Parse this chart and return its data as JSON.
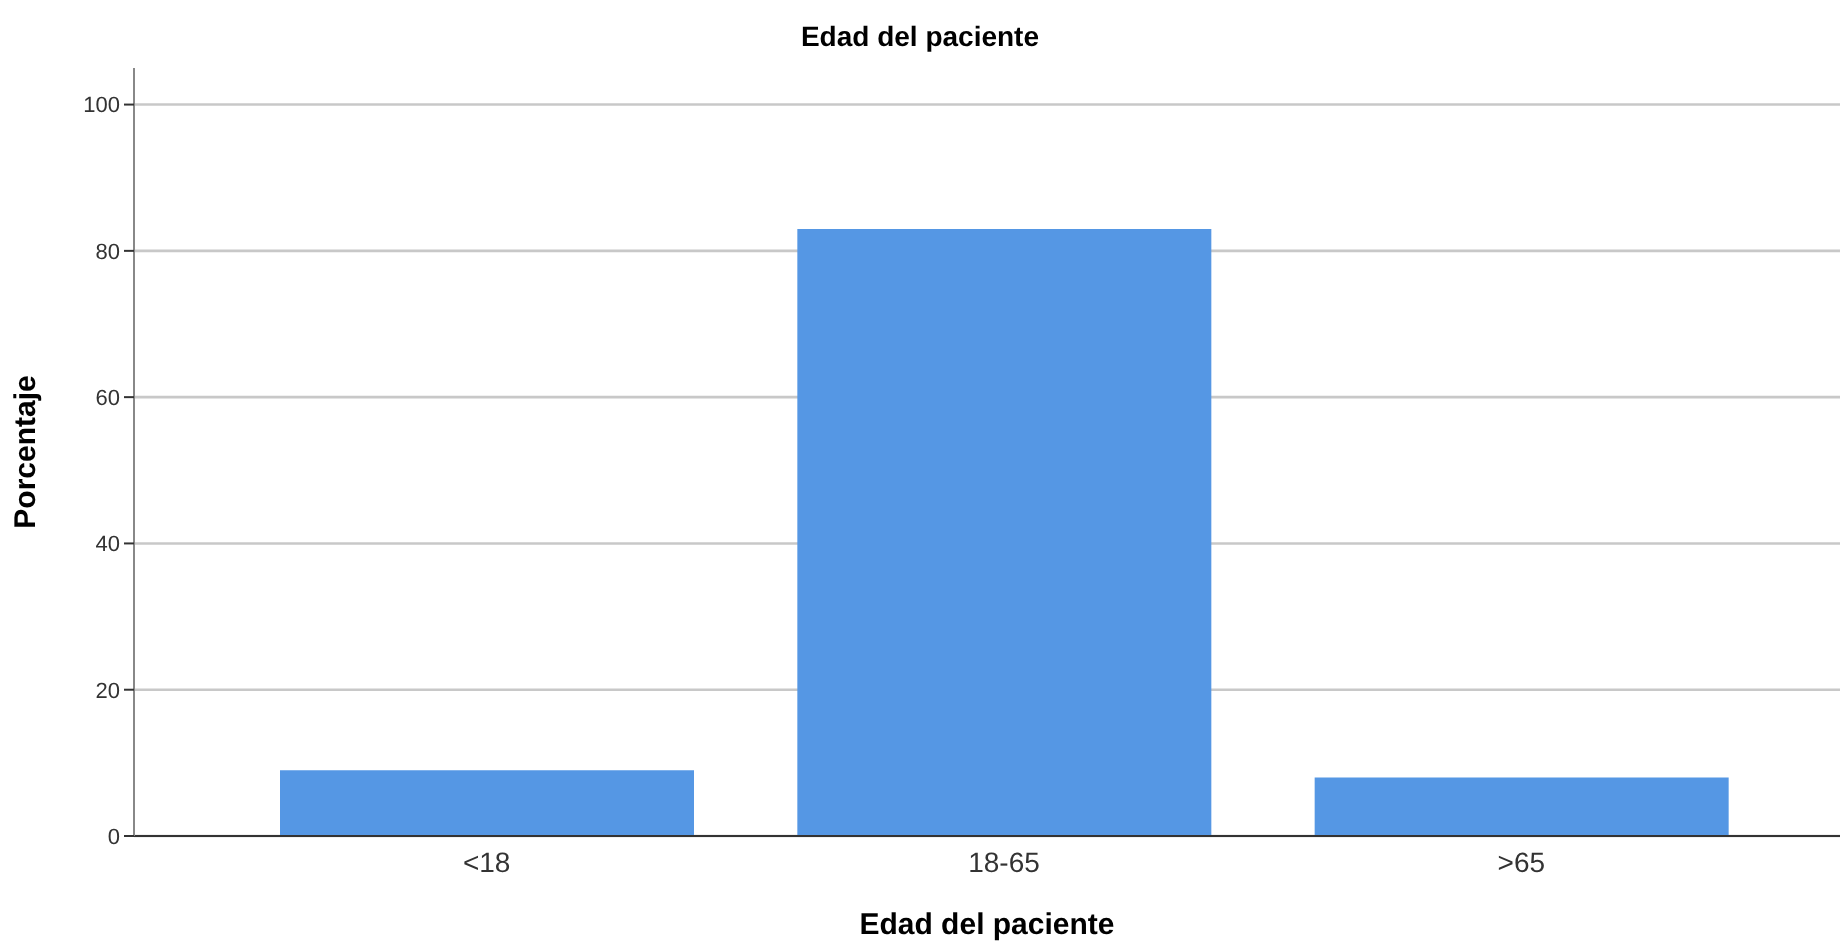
{
  "chart_data": {
    "type": "bar",
    "title": "Edad del paciente",
    "xlabel": "Edad del paciente",
    "ylabel": "Porcentaje",
    "categories": [
      "<18",
      "18-65",
      ">65"
    ],
    "values": [
      9,
      83,
      8
    ],
    "color": "#5597e4",
    "ylim": [
      0,
      105
    ],
    "yticks": [
      0,
      20,
      40,
      60,
      80,
      100
    ],
    "grid": "y",
    "legend": false
  }
}
